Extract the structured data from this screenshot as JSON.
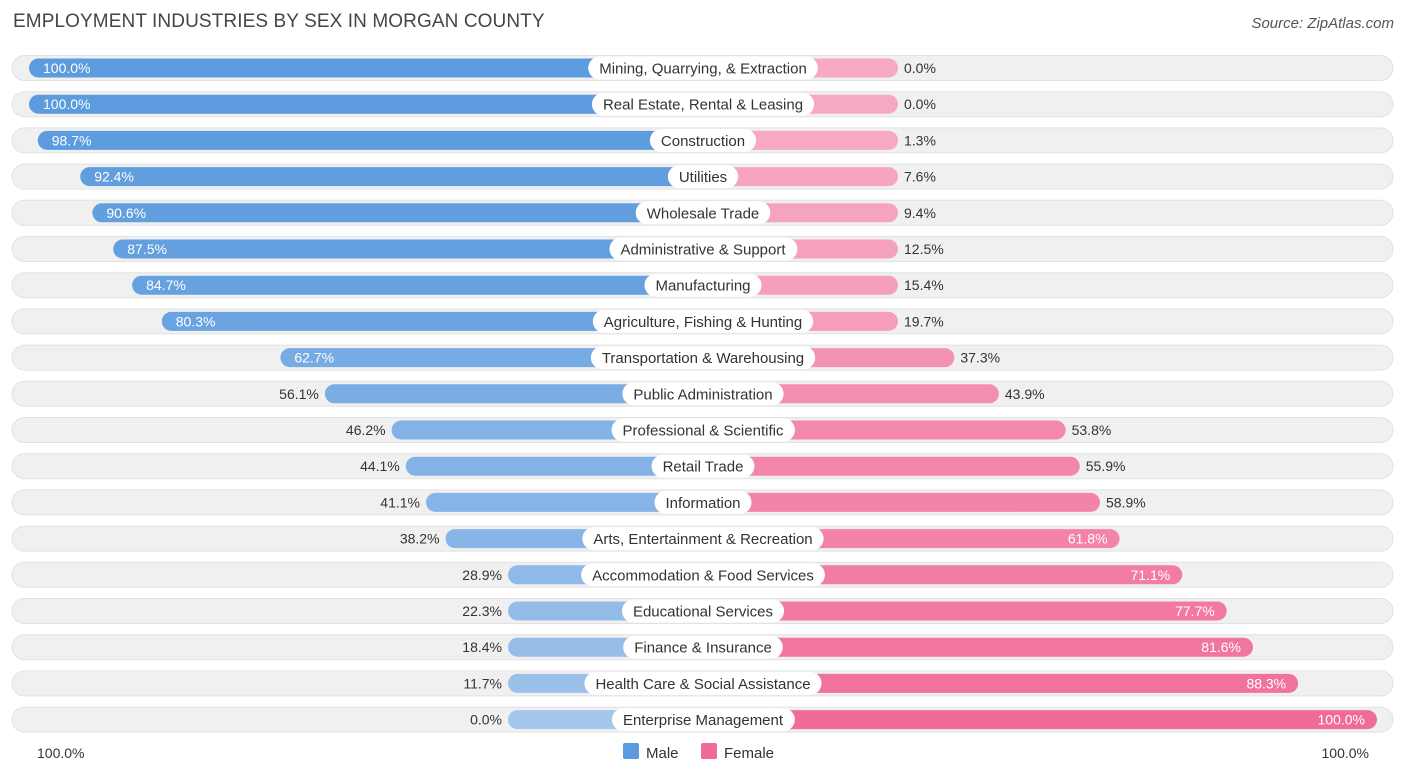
{
  "header": {
    "title": "EMPLOYMENT INDUSTRIES BY SEX IN MORGAN COUNTY",
    "source": "Source: ZipAtlas.com"
  },
  "colors": {
    "male_strong": "#5b9bde",
    "male_light": "#a4c5ec",
    "female_strong": "#f06b97",
    "female_light": "#f7a9c3",
    "track": "#f0f0f0"
  },
  "chart_data": {
    "type": "bar",
    "orientation": "horizontal-diverging",
    "title": "EMPLOYMENT INDUSTRIES BY SEX IN MORGAN COUNTY",
    "categories": [
      "Mining, Quarrying, & Extraction",
      "Real Estate, Rental & Leasing",
      "Construction",
      "Utilities",
      "Wholesale Trade",
      "Administrative & Support",
      "Manufacturing",
      "Agriculture, Fishing & Hunting",
      "Transportation & Warehousing",
      "Public Administration",
      "Professional & Scientific",
      "Retail Trade",
      "Information",
      "Arts, Entertainment & Recreation",
      "Accommodation & Food Services",
      "Educational Services",
      "Finance & Insurance",
      "Health Care & Social Assistance",
      "Enterprise Management"
    ],
    "series": [
      {
        "name": "Male",
        "values": [
          100.0,
          100.0,
          98.7,
          92.4,
          90.6,
          87.5,
          84.7,
          80.3,
          62.7,
          56.1,
          46.2,
          44.1,
          41.1,
          38.2,
          28.9,
          22.3,
          18.4,
          11.7,
          0.0
        ],
        "labels": [
          "100.0%",
          "100.0%",
          "98.7%",
          "92.4%",
          "90.6%",
          "87.5%",
          "84.7%",
          "80.3%",
          "62.7%",
          "56.1%",
          "46.2%",
          "44.1%",
          "41.1%",
          "38.2%",
          "28.9%",
          "22.3%",
          "18.4%",
          "11.7%",
          "0.0%"
        ]
      },
      {
        "name": "Female",
        "values": [
          0.0,
          0.0,
          1.3,
          7.6,
          9.4,
          12.5,
          15.4,
          19.7,
          37.3,
          43.9,
          53.8,
          55.9,
          58.9,
          61.8,
          71.1,
          77.7,
          81.6,
          88.3,
          100.0
        ],
        "labels": [
          "0.0%",
          "0.0%",
          "1.3%",
          "7.6%",
          "9.4%",
          "12.5%",
          "15.4%",
          "19.7%",
          "37.3%",
          "43.9%",
          "53.8%",
          "55.9%",
          "58.9%",
          "61.8%",
          "71.1%",
          "77.7%",
          "81.6%",
          "88.3%",
          "100.0%"
        ]
      }
    ],
    "axis": {
      "left_label": "100.0%",
      "right_label": "100.0%",
      "xlim": [
        0,
        100
      ]
    },
    "legend": {
      "position": "bottom-center",
      "items": [
        "Male",
        "Female"
      ]
    }
  }
}
